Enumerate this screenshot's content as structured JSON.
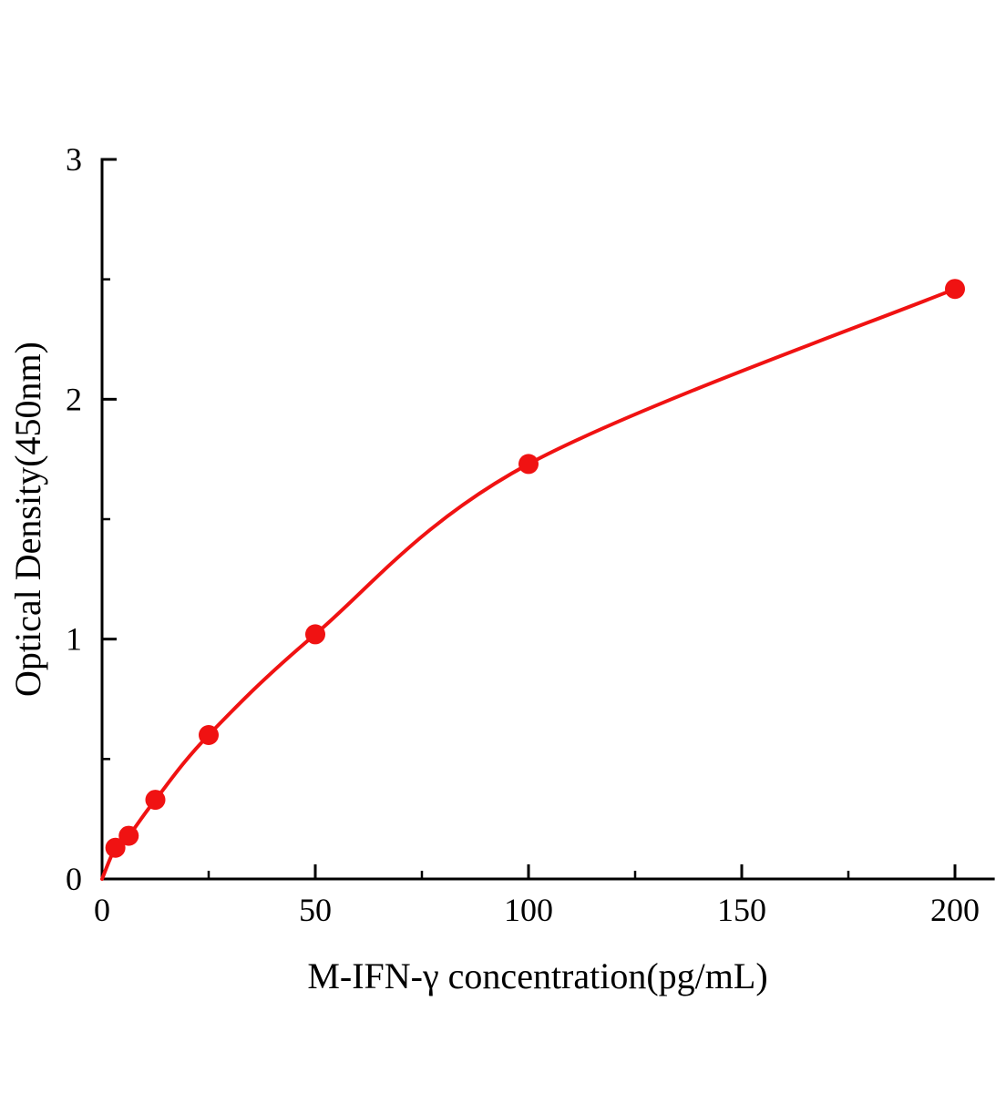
{
  "page": {
    "title": "ELISA standard curve",
    "background": "#ffffff"
  },
  "chart_data": {
    "type": "scatter",
    "title": "",
    "xlabel": "M-IFN-γ concentration(pg/mL)",
    "ylabel": "Optical Density(450nm)",
    "x": [
      3.125,
      6.25,
      12.5,
      25,
      50,
      100,
      200
    ],
    "y": [
      0.13,
      0.18,
      0.33,
      0.6,
      1.02,
      1.73,
      2.46
    ],
    "curve_anchor": {
      "x": 0,
      "y": 0.0
    },
    "xlim": [
      0,
      209
    ],
    "ylim": [
      0,
      3
    ],
    "x_major_ticks": [
      0,
      50,
      100,
      150,
      200
    ],
    "x_minor_ticks": [
      25,
      75,
      125,
      175
    ],
    "y_major_ticks": [
      0,
      1,
      2,
      3
    ],
    "y_minor_ticks": [
      0.5,
      1.5,
      2.5
    ],
    "legend": null,
    "grid": false,
    "colors": {
      "curve": "#f01212",
      "point": "#f01212",
      "axis": "#000000",
      "tick_label": "#000000"
    }
  }
}
